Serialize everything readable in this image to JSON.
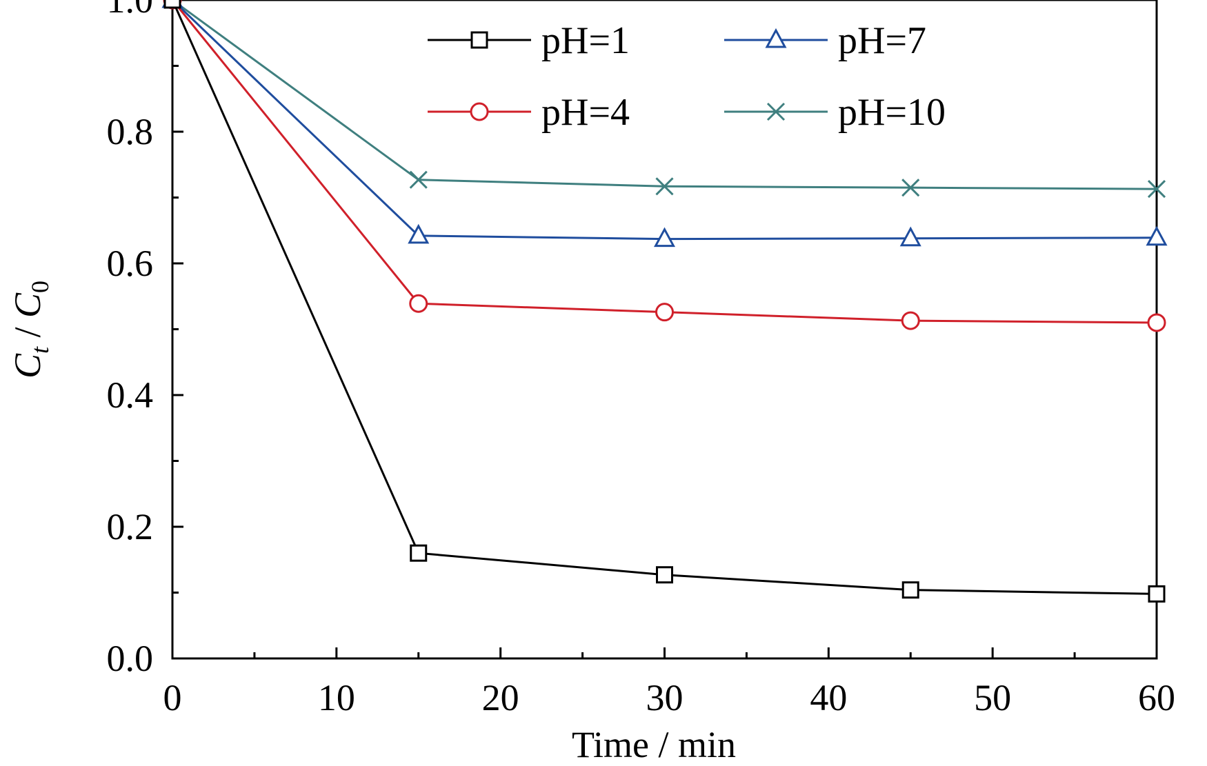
{
  "chart_data": {
    "type": "line",
    "title": "",
    "xlabel": "Time / min",
    "ylabel": {
      "C1": "C",
      "sub1": "t",
      "sep": " / ",
      "C2": "C",
      "sub2": "0"
    },
    "xlim": [
      0,
      60
    ],
    "ylim": [
      0,
      1.0
    ],
    "xticks": [
      0,
      10,
      20,
      30,
      40,
      50,
      60
    ],
    "xtick_labels": [
      "0",
      "10",
      "20",
      "30",
      "40",
      "50",
      "60"
    ],
    "yticks": [
      0,
      0.2,
      0.4,
      0.6,
      0.8,
      1.0
    ],
    "ytick_labels": [
      "0.0",
      "0.2",
      "0.4",
      "0.6",
      "0.8",
      "1.0"
    ],
    "grid": false,
    "legend_position": "top-center",
    "x": [
      0,
      15,
      30,
      45,
      60
    ],
    "series": [
      {
        "name": "pH=1",
        "marker": "square",
        "color": "#000000",
        "values": [
          1.0,
          0.16,
          0.127,
          0.104,
          0.098
        ]
      },
      {
        "name": "pH=4",
        "marker": "circle",
        "color": "#d0202a",
        "values": [
          1.0,
          0.539,
          0.526,
          0.513,
          0.51
        ]
      },
      {
        "name": "pH=7",
        "marker": "triangle",
        "color": "#1f4d9e",
        "values": [
          1.0,
          0.642,
          0.637,
          0.638,
          0.639
        ]
      },
      {
        "name": "pH=10",
        "marker": "cross",
        "color": "#3f7f7f",
        "values": [
          1.0,
          0.727,
          0.717,
          0.715,
          0.713
        ]
      }
    ],
    "legend_order": [
      "pH=1",
      "pH=7",
      "pH=4",
      "pH=10"
    ]
  }
}
